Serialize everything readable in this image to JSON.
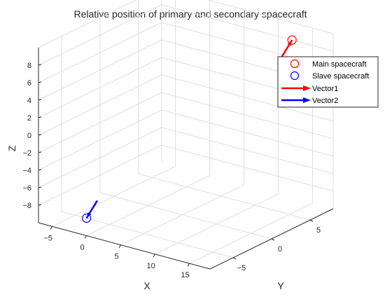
{
  "chart_data": {
    "type": "scatter",
    "title": "Relative position of primary and secondary spacecraft",
    "xlabel": "X",
    "ylabel": "Y",
    "zlabel": "Z",
    "xlim": [
      -7,
      18
    ],
    "ylim": [
      -8,
      8
    ],
    "zlim": [
      -10,
      10
    ],
    "x_ticks": [
      -5,
      0,
      5,
      10,
      15
    ],
    "y_ticks": [
      -5,
      0,
      5
    ],
    "z_ticks": [
      -8,
      -6,
      -4,
      -2,
      0,
      2,
      4,
      6,
      8
    ],
    "grid": true,
    "legend_position": "top-right",
    "series": [
      {
        "name": "Main spacecraft",
        "marker": "circle",
        "color": "#ff0000",
        "points": [
          {
            "x": 12,
            "y": 8,
            "z": 8
          }
        ]
      },
      {
        "name": "Slave spacecraft",
        "marker": "circle",
        "color": "#0000ff",
        "points": [
          {
            "x": 0,
            "y": -8,
            "z": -8
          }
        ]
      },
      {
        "name": "Vector1",
        "marker": "arrow",
        "color": "#ff0000",
        "from": {
          "x": 12,
          "y": 8,
          "z": 8
        },
        "to": {
          "x": 11,
          "y": 7.5,
          "z": 6
        }
      },
      {
        "name": "Vector2",
        "marker": "arrow",
        "color": "#0000ff",
        "from": {
          "x": 0,
          "y": -8,
          "z": -8
        },
        "to": {
          "x": 1,
          "y": -7.5,
          "z": -6
        }
      }
    ]
  }
}
